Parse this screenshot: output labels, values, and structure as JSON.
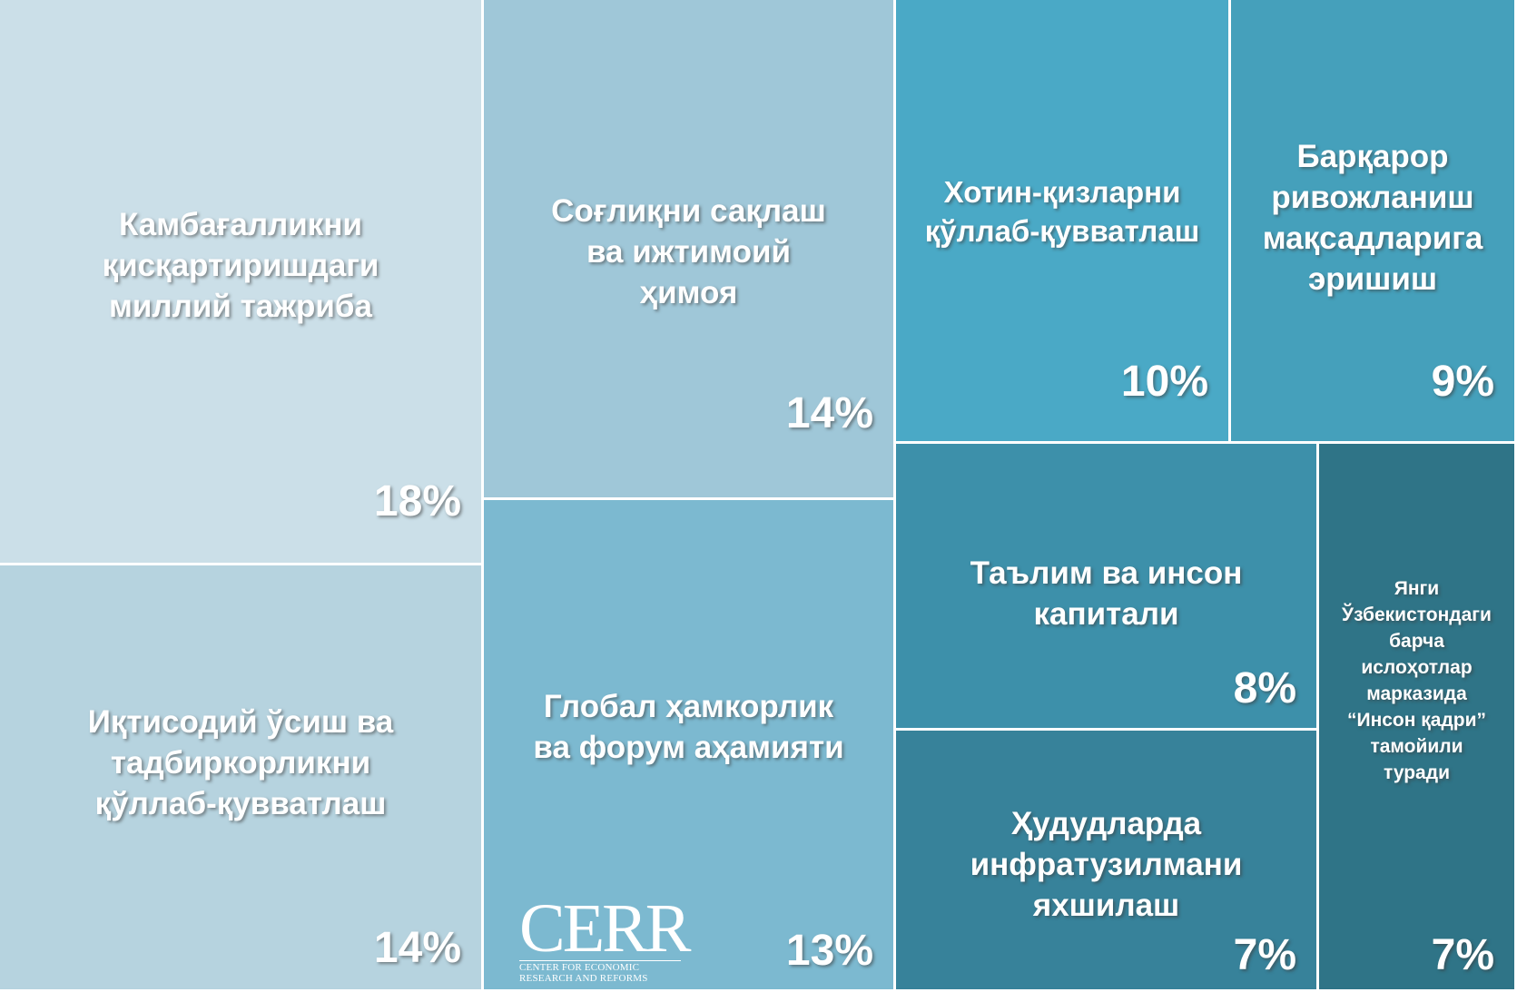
{
  "chart_data": {
    "type": "treemap",
    "tiles": [
      {
        "label": "Камбағалликни\nқисқартиришдаги\nмиллий тажриба",
        "value": 18,
        "display": "18%",
        "color": "#cbdfe8"
      },
      {
        "label": "Иқтисодий ўсиш ва\nтадбиркорликни\nқўллаб-қувватлаш",
        "value": 14,
        "display": "14%",
        "color": "#b6d3df"
      },
      {
        "label": "Соғлиқни сақлаш\nва ижтимоий\nҳимоя",
        "value": 14,
        "display": "14%",
        "color": "#9fc7d8"
      },
      {
        "label": "Глобал ҳамкорлик\nва форум аҳамияти",
        "value": 13,
        "display": "13%",
        "color": "#7cb9d0"
      },
      {
        "label": "Хотин-қизларни\nқўллаб-қувватлаш",
        "value": 10,
        "display": "10%",
        "color": "#4aa9c6"
      },
      {
        "label": "Барқарор\nривожланиш\nмақсадларига\nэришиш",
        "value": 9,
        "display": "9%",
        "color": "#45a0bb"
      },
      {
        "label": "Таълим ва инсон\nкапитали",
        "value": 8,
        "display": "8%",
        "color": "#3d90aa"
      },
      {
        "label": "Ҳудудларда\nинфратузилмани\nяхшилаш",
        "value": 7,
        "display": "7%",
        "color": "#37829a"
      },
      {
        "label": "Янги\nЎзбекистондаги\nбарча\nислоҳотлар\nмарказида\n“Инсон қадри”\nтамойили\nтуради",
        "value": 7,
        "display": "7%",
        "color": "#2f7487"
      }
    ]
  },
  "logo": {
    "word": "CERR",
    "line1": "CENTER FOR ECONOMIC",
    "line2": "RESEARCH AND REFORMS"
  }
}
